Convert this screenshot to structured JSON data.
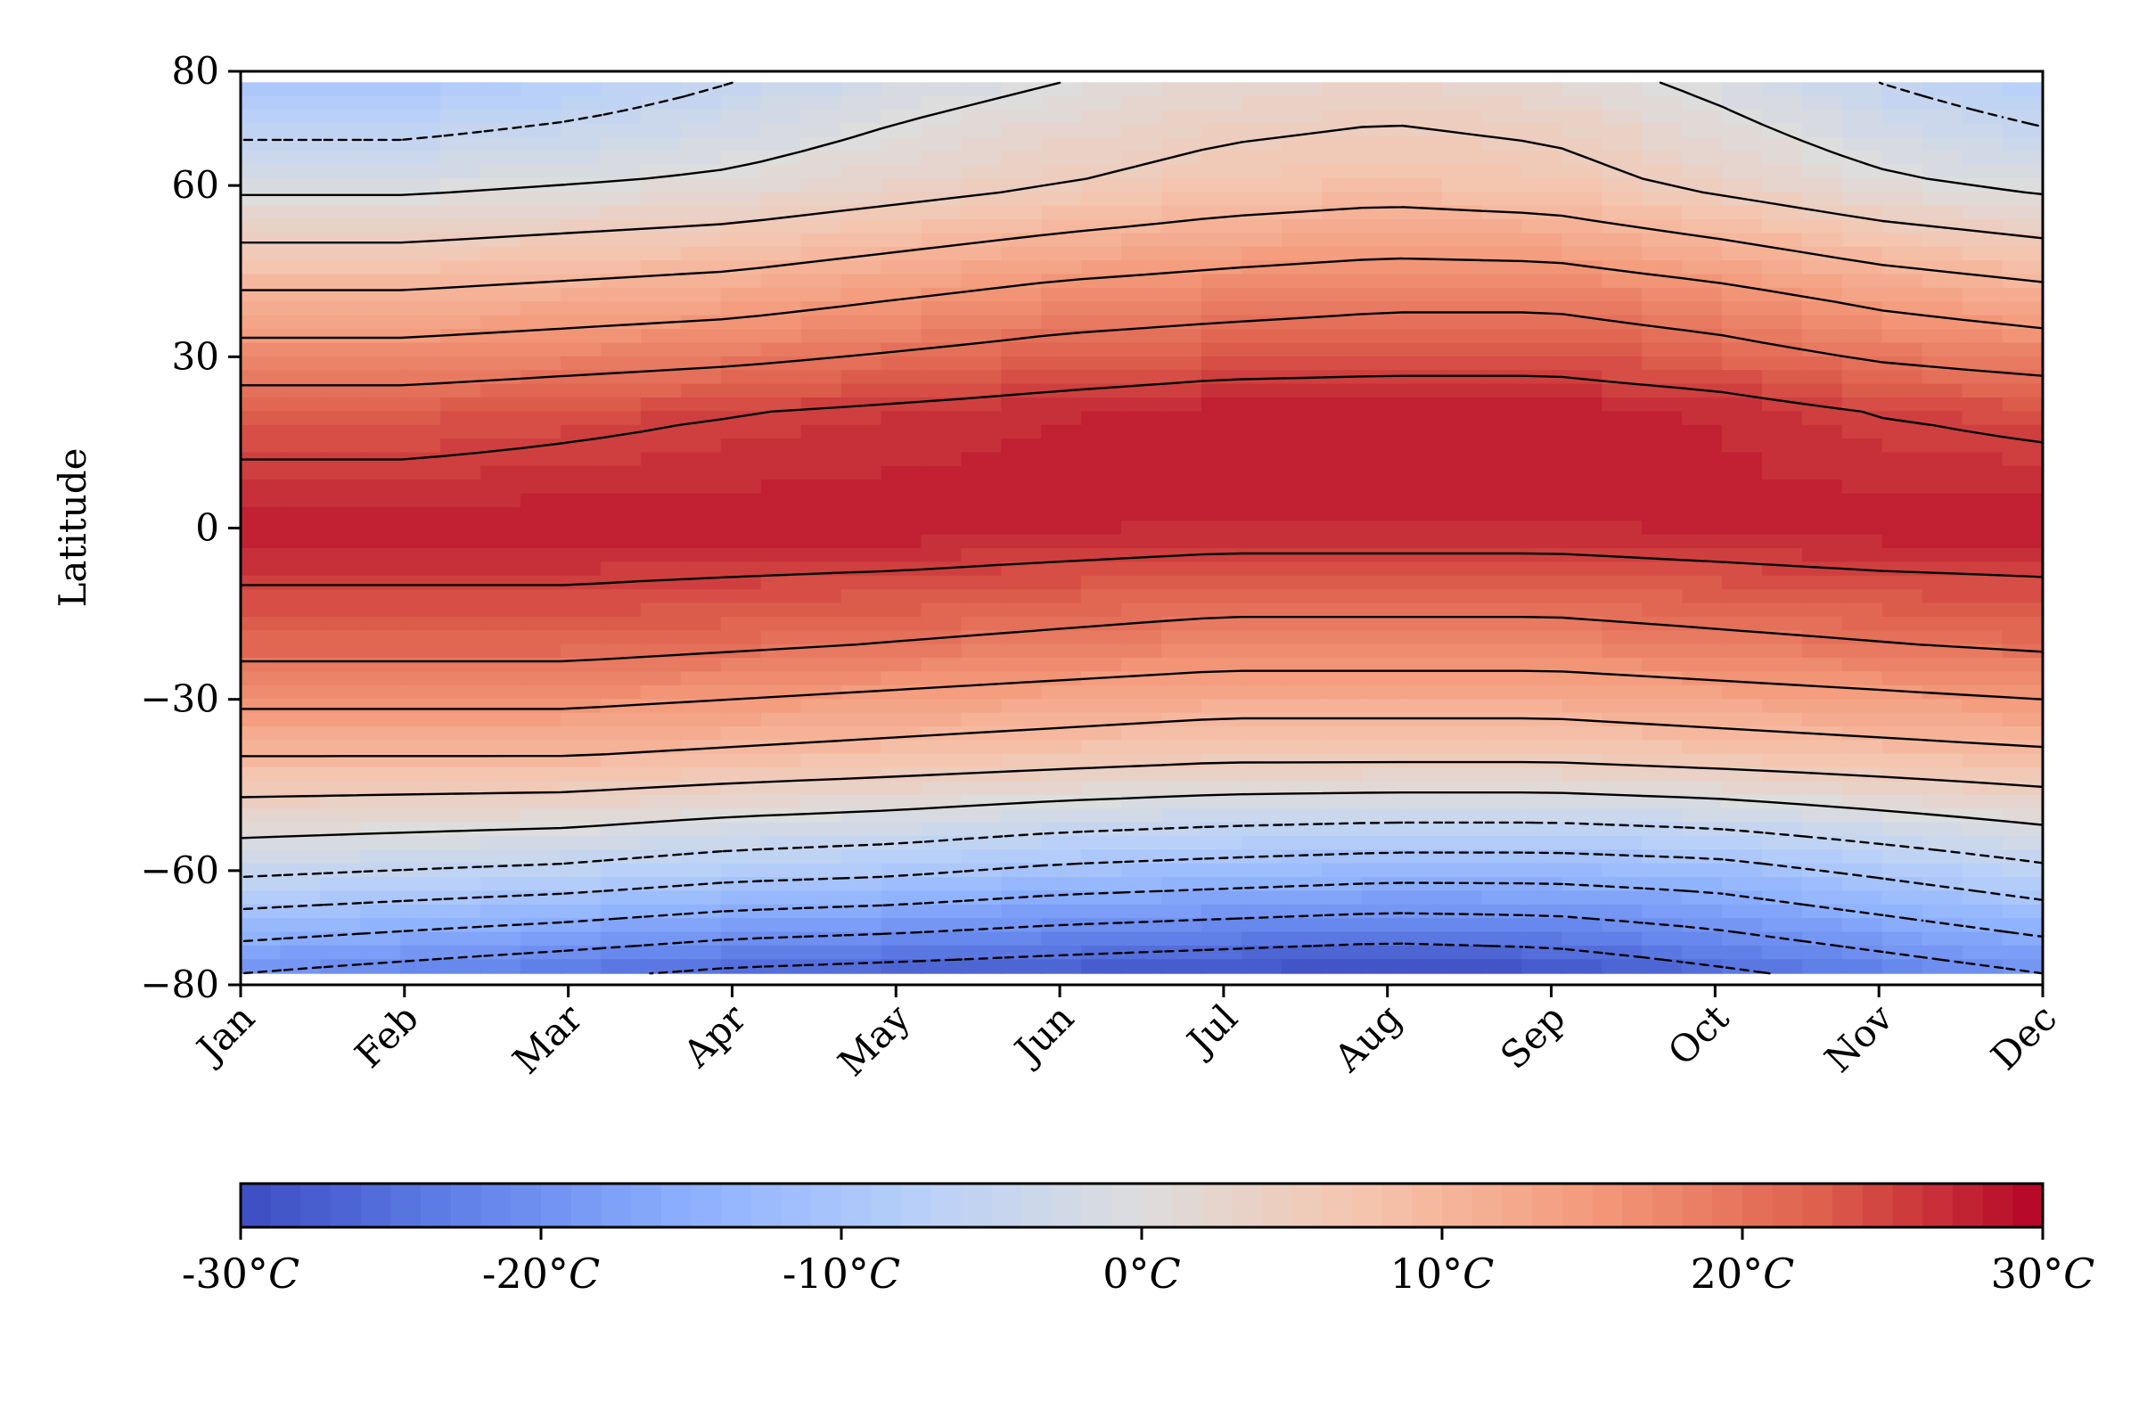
{
  "chart_data": {
    "type": "heatmap",
    "subtype": "filled contour (temperature by month and latitude)",
    "title": "",
    "xlabel": "",
    "ylabel": "Latitude",
    "x_categories": [
      "Jan",
      "Feb",
      "Mar",
      "Apr",
      "May",
      "Jun",
      "Jul",
      "Aug",
      "Sep",
      "Oct",
      "Nov",
      "Dec"
    ],
    "y_ticks": [
      "80",
      "60",
      "30",
      "0",
      "−30",
      "−60",
      "−80"
    ],
    "y_tick_values": [
      80,
      60,
      30,
      0,
      -30,
      -60,
      -80
    ],
    "ylim": [
      -80,
      80
    ],
    "colormap": "coolwarm",
    "colorbar": {
      "range": [
        -30,
        30
      ],
      "tick_values": [
        -30,
        -20,
        -10,
        0,
        10,
        20,
        30
      ],
      "tick_numbers": [
        "-30°",
        "-20°",
        "-10°",
        "0°",
        "10°",
        "20°",
        "30°"
      ],
      "tick_unit": "C",
      "orientation": "horizontal"
    },
    "colors": {
      "cold": "#3b4cc0",
      "neutral": "#dddddd",
      "warm": "#b40426"
    },
    "contour_levels": [
      -25,
      -20,
      -15,
      -10,
      -5,
      0,
      5,
      10,
      15,
      20,
      25
    ],
    "contour_style": {
      "negative": "dashed",
      "positive": "solid"
    },
    "latitude_grid": [
      -78,
      -60,
      -40,
      -20,
      0,
      20,
      40,
      60,
      78
    ],
    "temperature_grid": [
      [
        -20,
        -22,
        -24,
        -26,
        -27,
        -28,
        -29,
        -30,
        -29,
        -26,
        -23,
        -20
      ],
      [
        -4,
        -5,
        -6,
        -8,
        -9,
        -11,
        -12,
        -13,
        -13,
        -12,
        -9,
        -6
      ],
      [
        10,
        10,
        10,
        9,
        8,
        7,
        6,
        6,
        6,
        7,
        8,
        9
      ],
      [
        22,
        22,
        22,
        21,
        20,
        19,
        18,
        18,
        18,
        19,
        20,
        21
      ],
      [
        28,
        28,
        28,
        28,
        28,
        27.5,
        27,
        27,
        27,
        27.5,
        28,
        28
      ],
      [
        23,
        23,
        24,
        25,
        26,
        27,
        28,
        28,
        28,
        27,
        25,
        24
      ],
      [
        11,
        11,
        12,
        13,
        15,
        17,
        18,
        19,
        19,
        17,
        14,
        12
      ],
      [
        -1,
        -1,
        0,
        1,
        3,
        5,
        7,
        8,
        7,
        4,
        1,
        -1
      ],
      [
        -10,
        -10,
        -8,
        -5,
        -2,
        0,
        2,
        3,
        2,
        -1,
        -5,
        -8
      ]
    ]
  }
}
